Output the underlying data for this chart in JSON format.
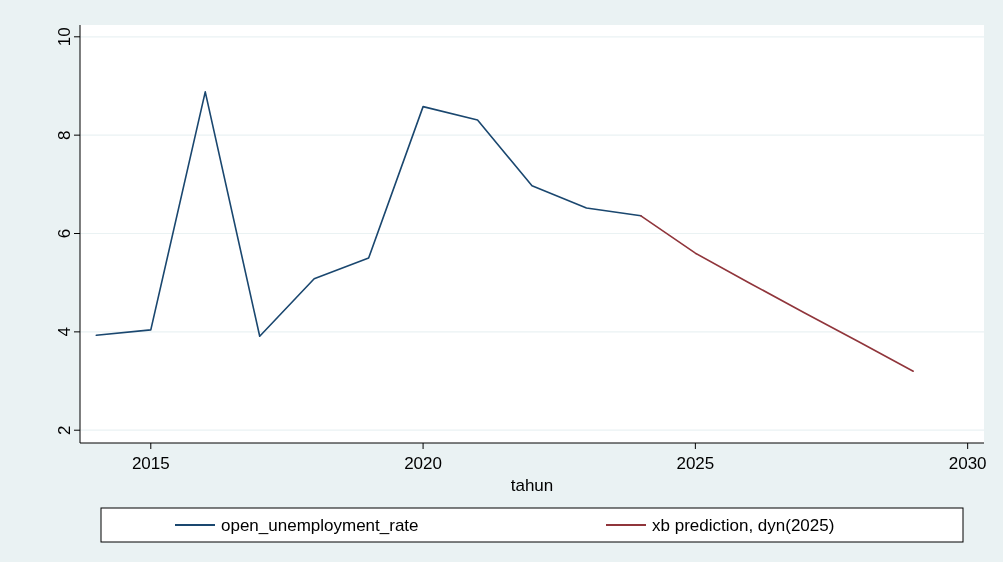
{
  "chart_data": {
    "type": "line",
    "xlabel": "tahun",
    "xlim": [
      2013.7,
      2030.3
    ],
    "xticks": [
      2015,
      2020,
      2025,
      2030
    ],
    "ylim": [
      1.74,
      10.24
    ],
    "yticks": [
      2,
      4,
      6,
      8,
      10
    ],
    "grid": "y",
    "legend": "bottom",
    "marker": "none",
    "line_style": "solid",
    "series": [
      {
        "name": "open_unemployment_rate",
        "color": "#1a476f",
        "x": [
          2014,
          2015,
          2016,
          2017,
          2018,
          2019,
          2020,
          2021,
          2022,
          2023,
          2024
        ],
        "values": [
          3.93,
          4.04,
          8.88,
          3.91,
          5.08,
          5.5,
          8.58,
          8.31,
          6.97,
          6.52,
          6.36
        ]
      },
      {
        "name": "xb prediction, dyn(2025)",
        "color": "#90353b",
        "x": [
          2024,
          2025,
          2026,
          2027,
          2028,
          2029
        ],
        "values": [
          6.36,
          5.6,
          4.99,
          4.39,
          3.8,
          3.2
        ]
      }
    ]
  }
}
